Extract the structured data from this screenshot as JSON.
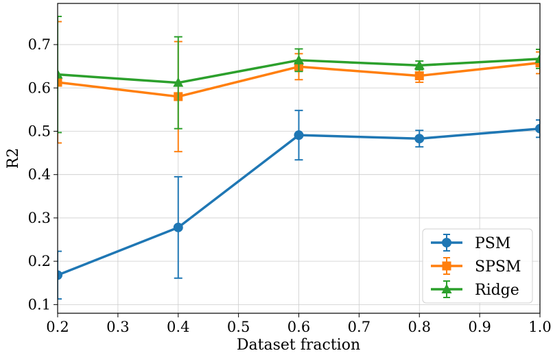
{
  "chart_data": {
    "type": "line",
    "title": "",
    "xlabel": "Dataset fraction",
    "ylabel": "R2",
    "xlim": [
      0.2,
      1.0
    ],
    "ylim": [
      0.08,
      0.795
    ],
    "xticks": [
      "0.2",
      "0.3",
      "0.4",
      "0.5",
      "0.6",
      "0.7",
      "0.8",
      "0.9",
      "1.0"
    ],
    "yticks": [
      "0.1",
      "0.2",
      "0.3",
      "0.4",
      "0.5",
      "0.6",
      "0.7"
    ],
    "grid": true,
    "legend_position": "bottom-right",
    "x": [
      0.2,
      0.4,
      0.6,
      0.8,
      1.0
    ],
    "series": [
      {
        "name": "PSM",
        "color": "#1f77b4",
        "marker": "circle",
        "values": [
          0.168,
          0.278,
          0.491,
          0.483,
          0.506
        ],
        "errors": [
          0.055,
          0.117,
          0.057,
          0.019,
          0.02
        ]
      },
      {
        "name": "SPSM",
        "color": "#ff7f0e",
        "marker": "square",
        "values": [
          0.613,
          0.58,
          0.649,
          0.628,
          0.658
        ],
        "errors": [
          0.14,
          0.127,
          0.03,
          0.015,
          0.025
        ]
      },
      {
        "name": "Ridge",
        "color": "#2ca02c",
        "marker": "triangle",
        "values": [
          0.631,
          0.612,
          0.664,
          0.652,
          0.667
        ],
        "errors": [
          0.134,
          0.106,
          0.026,
          0.01,
          0.022
        ]
      }
    ]
  }
}
